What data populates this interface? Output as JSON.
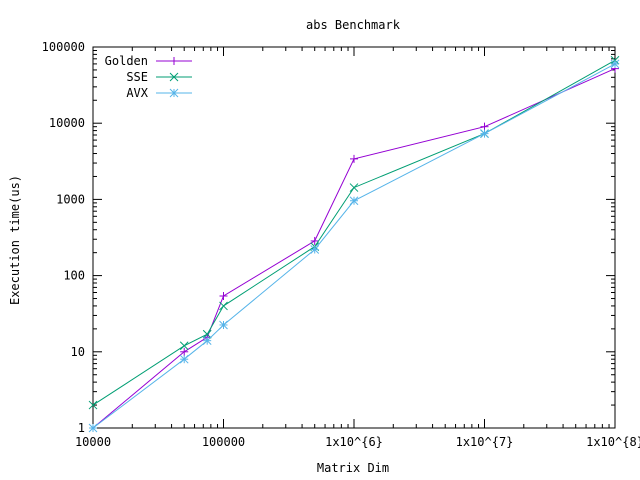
{
  "chart_data": {
    "type": "line",
    "title": "abs Benchmark",
    "xlabel": "Matrix Dim",
    "ylabel": "Execution time(us)",
    "xscale": "log",
    "yscale": "log",
    "xlim": [
      10000,
      100000000
    ],
    "ylim": [
      1,
      100000
    ],
    "grid": false,
    "legend_position": "top-left",
    "x_ticks": [
      {
        "value": 10000,
        "label": "10000"
      },
      {
        "value": 100000,
        "label": "100000"
      },
      {
        "value": 1000000,
        "label": "1x10^{6}"
      },
      {
        "value": 10000000,
        "label": "1x10^{7}"
      },
      {
        "value": 100000000,
        "label": "1x10^{8}"
      }
    ],
    "y_ticks": [
      {
        "value": 1,
        "label": "1"
      },
      {
        "value": 10,
        "label": "10"
      },
      {
        "value": 100,
        "label": "100"
      },
      {
        "value": 1000,
        "label": "1000"
      },
      {
        "value": 10000,
        "label": "10000"
      },
      {
        "value": 100000,
        "label": "100000"
      }
    ],
    "series": [
      {
        "name": "Golden",
        "color": "#9400d3",
        "marker": "plus",
        "points": [
          [
            10000,
            1
          ],
          [
            50000,
            10
          ],
          [
            75000,
            15.5
          ],
          [
            100000,
            54
          ],
          [
            500000,
            285
          ],
          [
            1000000,
            3400
          ],
          [
            10000000,
            9000
          ],
          [
            100000000,
            52000
          ]
        ]
      },
      {
        "name": "SSE",
        "color": "#009e73",
        "marker": "cross",
        "points": [
          [
            10000,
            2
          ],
          [
            50000,
            12
          ],
          [
            75000,
            17
          ],
          [
            100000,
            40
          ],
          [
            500000,
            240
          ],
          [
            1000000,
            1430
          ],
          [
            10000000,
            7300
          ],
          [
            100000000,
            67000
          ]
        ]
      },
      {
        "name": "AVX",
        "color": "#56b4e9",
        "marker": "star",
        "points": [
          [
            10000,
            1
          ],
          [
            50000,
            8
          ],
          [
            75000,
            14
          ],
          [
            100000,
            22.5
          ],
          [
            500000,
            220
          ],
          [
            1000000,
            960
          ],
          [
            10000000,
            7300
          ],
          [
            100000000,
            60000
          ]
        ]
      }
    ]
  }
}
